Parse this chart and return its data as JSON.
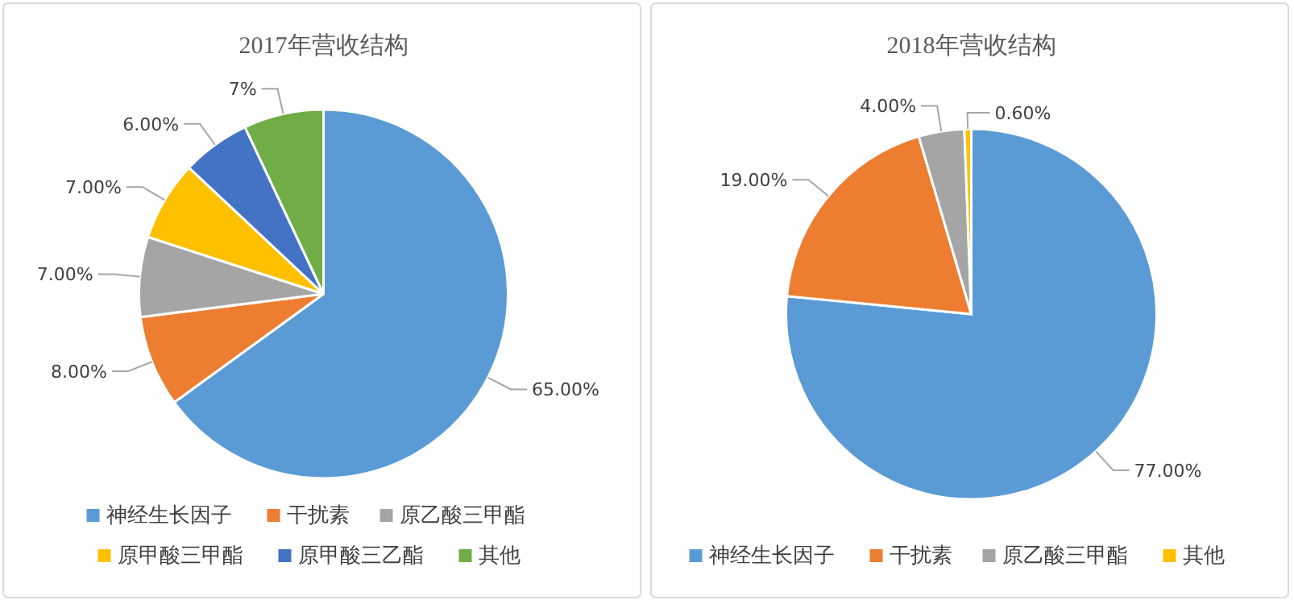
{
  "chart_data": [
    {
      "type": "pie",
      "title": "2017年营收结构",
      "categories": [
        "神经生长因子",
        "干扰素",
        "原乙酸三甲酯",
        "原甲酸三甲酯",
        "原甲酸三乙酯",
        "其他"
      ],
      "values": [
        65,
        8,
        7,
        7,
        6,
        7
      ],
      "value_labels": [
        "65.00%",
        "8.00%",
        "7.00%",
        "7.00%",
        "6.00%",
        "7%"
      ],
      "colors": [
        "#5b9bd5",
        "#ed7d31",
        "#a5a5a5",
        "#ffc000",
        "#4472c4",
        "#70ad47"
      ],
      "legend": "bottom"
    },
    {
      "type": "pie",
      "title": "2018年营收结构",
      "categories": [
        "神经生长因子",
        "干扰素",
        "原乙酸三甲酯",
        "其他"
      ],
      "values": [
        77,
        19,
        4,
        0.6
      ],
      "value_labels": [
        "77.00%",
        "19.00%",
        "4.00%",
        "0.60%"
      ],
      "colors": [
        "#5b9bd5",
        "#ed7d31",
        "#a5a5a5",
        "#ffc000"
      ],
      "legend": "bottom"
    }
  ]
}
